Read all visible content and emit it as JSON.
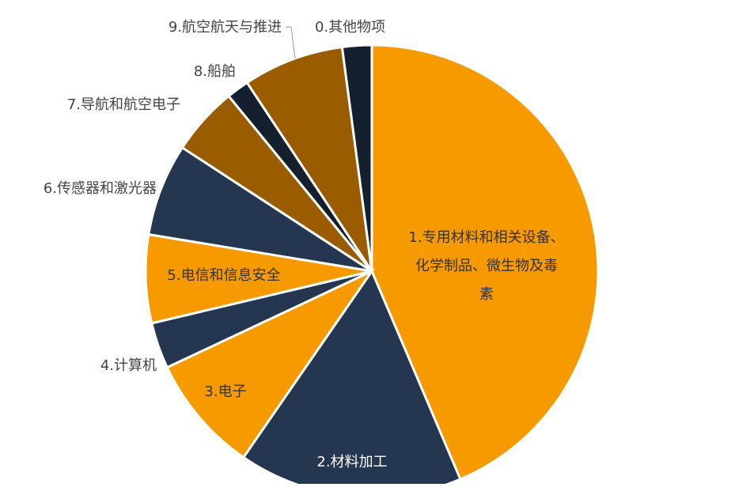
{
  "chart_data": {
    "type": "pie",
    "start_angle": "12 o'clock, clockwise",
    "slices": [
      {
        "label": "1.专用材料和相关设备、化学制品、微生物及毒素",
        "lines": [
          "1.专用材料和相关设备、",
          "化学制品、微生物及毒",
          "素"
        ],
        "value": 43.6,
        "color": "#F79A00",
        "label_inside": true
      },
      {
        "label": "2.材料加工",
        "lines": [
          "2.材料加工"
        ],
        "value": 16.0,
        "color": "#243650",
        "label_inside": true
      },
      {
        "label": "3.电子",
        "lines": [
          "3.电子"
        ],
        "value": 8.4,
        "color": "#F79A00",
        "label_inside": true
      },
      {
        "label": "4.计算机",
        "lines": [
          "4.计算机"
        ],
        "value": 3.3,
        "color": "#243650",
        "label_inside": false
      },
      {
        "label": "5.电信和信息安全",
        "lines": [
          "5.电信和信息安全"
        ],
        "value": 6.3,
        "color": "#F79A00",
        "label_inside": true
      },
      {
        "label": "6.传感器和激光器",
        "lines": [
          "6.传感器和激光器"
        ],
        "value": 6.6,
        "color": "#243650",
        "label_inside": false
      },
      {
        "label": "7.导航和航空电子",
        "lines": [
          "7.导航和航空电子"
        ],
        "value": 4.9,
        "color": "#9B5C00",
        "label_inside": false
      },
      {
        "label": "8.船舶",
        "lines": [
          "8.船舶"
        ],
        "value": 1.6,
        "color": "#15202E",
        "label_inside": false
      },
      {
        "label": "9.航空航天与推进",
        "lines": [
          "9.航空航天与推进"
        ],
        "value": 7.2,
        "color": "#9B5C00",
        "label_inside": false
      },
      {
        "label": "0.其他物项",
        "lines": [
          "0.其他物项"
        ],
        "value": 2.1,
        "color": "#15202E",
        "label_inside": false
      }
    ],
    "legend": "none"
  }
}
